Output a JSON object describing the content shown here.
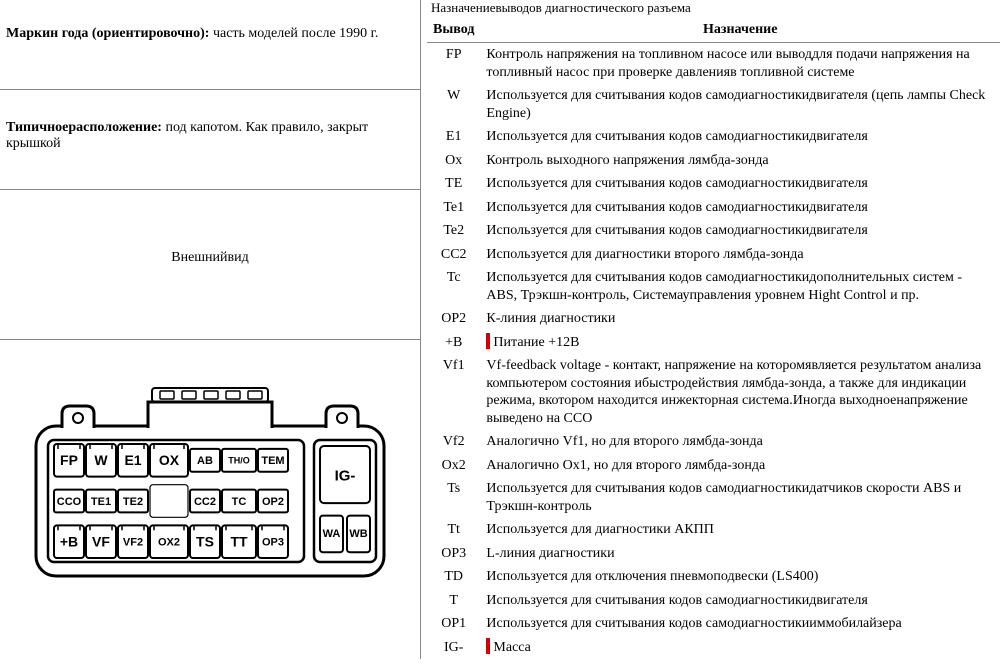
{
  "left": {
    "year_label": "Маркин года (ориентировочно):",
    "year_text": " часть моделей после 1990 г.",
    "loc_label": "Типичноерасположение:",
    "loc_text": " под капотом. Как правило, закрыт крышкой",
    "view_label": "Внешнийвид"
  },
  "right": {
    "caption": "Назначениевыводов диагностического разъема",
    "col_code": "Вывод",
    "col_desc": "Назначение"
  },
  "rows": [
    {
      "code": "FP",
      "desc": "Контроль напряжения на топливном насосе или выводдля подачи напряжения на топливный насос при проверке давленияв топливной системе",
      "mark": false
    },
    {
      "code": "W",
      "desc": "Используется для считывания кодов самодиагностикидвигателя (цепь лампы Check Engine)",
      "mark": false
    },
    {
      "code": "E1",
      "desc": "Используется для считывания кодов самодиагностикидвигателя",
      "mark": false
    },
    {
      "code": "Ox",
      "desc": "Контроль выходного напряжения лямбда-зонда",
      "mark": false
    },
    {
      "code": "TE",
      "desc": "Используется для считывания кодов самодиагностикидвигателя",
      "mark": false
    },
    {
      "code": "Te1",
      "desc": "Используется для считывания кодов самодиагностикидвигателя",
      "mark": false
    },
    {
      "code": "Te2",
      "desc": "Используется для считывания кодов самодиагностикидвигателя",
      "mark": false
    },
    {
      "code": "CC2",
      "desc": "Используется для диагностики второго лямбда-зонда",
      "mark": false
    },
    {
      "code": "Tc",
      "desc": "Используется для считывания кодов самодиагностикидополнительных систем - ABS, Трэкшн-контроль, Системауправления уровнем Hight Control и пр.",
      "mark": false
    },
    {
      "code": "OP2",
      "desc": "К-линия диагностики",
      "mark": false
    },
    {
      "code": "+B",
      "desc": "Питание +12В",
      "mark": true
    },
    {
      "code": "Vf1",
      "desc": "Vf-feedback voltage - контакт, напряжение на которомявляется результатом анализа компьютером состояния ибыстродействия лямбда-зонда, а также для индикации режима, вкотором находится инжекторная система.Иногда выходноенапряжение выведено на CCO",
      "mark": false
    },
    {
      "code": "Vf2",
      "desc": "Аналогично Vf1, но для второго лямбда-зонда",
      "mark": false
    },
    {
      "code": "Ox2",
      "desc": "Аналогично Ox1, но для второго лямбда-зонда",
      "mark": false
    },
    {
      "code": "Ts",
      "desc": "Используется для считывания кодов самодиагностикидатчиков скорости ABS и Трэкшн-контроль",
      "mark": false
    },
    {
      "code": "Tt",
      "desc": "Используется для диагностики АКПП",
      "mark": false
    },
    {
      "code": "OP3",
      "desc": "L-линия диагностики",
      "mark": false
    },
    {
      "code": "TD",
      "desc": "Используется для отключения пневмоподвески (LS400)",
      "mark": false
    },
    {
      "code": "T",
      "desc": "Используется для считывания кодов самодиагностикидвигателя",
      "mark": false
    },
    {
      "code": "OP1",
      "desc": "Используется для считывания кодов самодиагностикииммобилайзера",
      "mark": false
    },
    {
      "code": "IG-",
      "desc": "Масса",
      "mark": true
    }
  ],
  "connector": {
    "stroke": "#000000",
    "row1": [
      {
        "l": "FP",
        "big": true
      },
      {
        "l": "W",
        "big": true
      },
      {
        "l": "E1",
        "big": true
      },
      {
        "l": "OX",
        "big": true,
        "wide": true
      },
      {
        "l": "AB",
        "big": false
      },
      {
        "l": "TH/O",
        "big": false
      },
      {
        "l": "TEM",
        "big": false
      }
    ],
    "row2": [
      {
        "l": "CCO",
        "big": false
      },
      {
        "l": "TE1",
        "big": false
      },
      {
        "l": "TE2",
        "big": false
      },
      {
        "l": "",
        "big": true,
        "wide": true,
        "blank": true
      },
      {
        "l": "CC2",
        "big": false
      },
      {
        "l": "TC",
        "big": false
      },
      {
        "l": "OP2",
        "big": false
      }
    ],
    "row3": [
      {
        "l": "+B",
        "big": true
      },
      {
        "l": "VF",
        "big": true
      },
      {
        "l": "VF2",
        "big": true
      },
      {
        "l": "OX2",
        "big": true,
        "wide": true
      },
      {
        "l": "TS",
        "big": true
      },
      {
        "l": "TT",
        "big": true
      },
      {
        "l": "OP3",
        "big": true
      }
    ],
    "side": {
      "top": "IG-",
      "bottomL": "WA",
      "bottomR": "WB"
    }
  }
}
